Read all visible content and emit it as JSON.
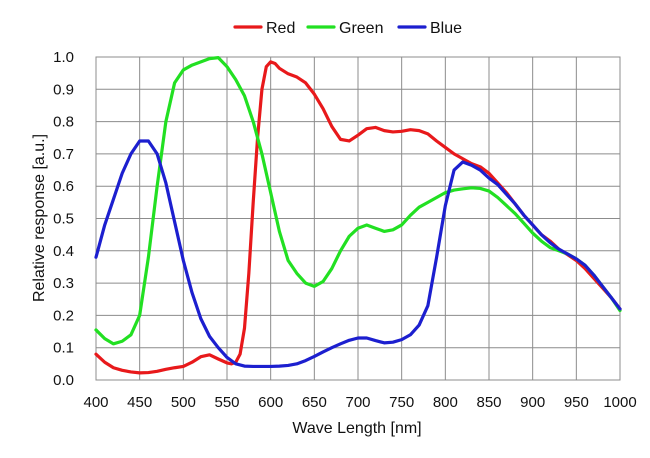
{
  "chart_data": {
    "type": "line",
    "title": "",
    "xlabel": "Wave Length [nm]",
    "ylabel": "Relative response [a.u.]",
    "xlim": [
      400,
      1000
    ],
    "ylim": [
      0.0,
      1.0
    ],
    "x_ticks": [
      "400",
      "450",
      "500",
      "550",
      "600",
      "650",
      "700",
      "750",
      "800",
      "850",
      "900",
      "950",
      "1000"
    ],
    "y_ticks": [
      "0.0",
      "0.1",
      "0.2",
      "0.3",
      "0.4",
      "0.5",
      "0.6",
      "0.7",
      "0.8",
      "0.9",
      "1.0"
    ],
    "grid": true,
    "legend_position": "top-center",
    "series": [
      {
        "name": "Red",
        "color": "#e8191b",
        "x": [
          400,
          410,
          420,
          430,
          440,
          450,
          460,
          470,
          480,
          490,
          500,
          510,
          520,
          530,
          540,
          550,
          555,
          560,
          565,
          570,
          575,
          580,
          585,
          590,
          595,
          600,
          605,
          610,
          620,
          630,
          640,
          650,
          660,
          670,
          680,
          690,
          700,
          710,
          720,
          730,
          740,
          750,
          760,
          770,
          780,
          790,
          800,
          810,
          820,
          830,
          840,
          850,
          860,
          870,
          880,
          890,
          900,
          910,
          920,
          930,
          940,
          950,
          960,
          970,
          980,
          990,
          1000
        ],
        "y": [
          0.08,
          0.055,
          0.038,
          0.03,
          0.025,
          0.022,
          0.023,
          0.027,
          0.033,
          0.038,
          0.042,
          0.055,
          0.072,
          0.078,
          0.065,
          0.053,
          0.05,
          0.055,
          0.08,
          0.16,
          0.33,
          0.55,
          0.75,
          0.9,
          0.97,
          0.985,
          0.98,
          0.965,
          0.948,
          0.938,
          0.92,
          0.885,
          0.84,
          0.785,
          0.745,
          0.74,
          0.758,
          0.778,
          0.782,
          0.772,
          0.768,
          0.77,
          0.775,
          0.772,
          0.762,
          0.74,
          0.72,
          0.7,
          0.685,
          0.67,
          0.66,
          0.64,
          0.61,
          0.58,
          0.545,
          0.51,
          0.48,
          0.45,
          0.43,
          0.405,
          0.388,
          0.37,
          0.345,
          0.315,
          0.285,
          0.255,
          0.22
        ]
      },
      {
        "name": "Green",
        "color": "#22e022",
        "x": [
          400,
          410,
          420,
          430,
          440,
          450,
          460,
          470,
          480,
          490,
          500,
          510,
          520,
          530,
          540,
          550,
          560,
          570,
          580,
          590,
          600,
          610,
          620,
          630,
          640,
          650,
          660,
          670,
          680,
          690,
          700,
          710,
          720,
          730,
          740,
          750,
          760,
          770,
          780,
          790,
          800,
          810,
          820,
          830,
          840,
          850,
          860,
          870,
          880,
          890,
          900,
          910,
          920,
          930,
          940,
          950,
          960,
          970,
          980,
          990,
          1000
        ],
        "y": [
          0.155,
          0.128,
          0.112,
          0.12,
          0.14,
          0.2,
          0.38,
          0.6,
          0.8,
          0.92,
          0.96,
          0.975,
          0.985,
          0.995,
          0.998,
          0.97,
          0.93,
          0.88,
          0.8,
          0.7,
          0.58,
          0.46,
          0.37,
          0.33,
          0.3,
          0.29,
          0.305,
          0.345,
          0.4,
          0.445,
          0.47,
          0.48,
          0.47,
          0.46,
          0.465,
          0.48,
          0.51,
          0.535,
          0.55,
          0.565,
          0.58,
          0.588,
          0.592,
          0.595,
          0.593,
          0.585,
          0.565,
          0.54,
          0.515,
          0.485,
          0.455,
          0.43,
          0.41,
          0.4,
          0.39,
          0.375,
          0.355,
          0.325,
          0.29,
          0.255,
          0.215
        ]
      },
      {
        "name": "Blue",
        "color": "#1c1fcf",
        "x": [
          400,
          410,
          420,
          430,
          440,
          450,
          460,
          470,
          480,
          490,
          500,
          510,
          520,
          530,
          540,
          550,
          560,
          570,
          580,
          590,
          600,
          610,
          620,
          630,
          640,
          650,
          660,
          670,
          680,
          690,
          700,
          710,
          720,
          730,
          740,
          750,
          760,
          770,
          780,
          790,
          800,
          810,
          820,
          830,
          840,
          850,
          860,
          870,
          880,
          890,
          900,
          910,
          920,
          930,
          940,
          950,
          960,
          970,
          980,
          990,
          1000
        ],
        "y": [
          0.38,
          0.48,
          0.56,
          0.64,
          0.7,
          0.74,
          0.74,
          0.7,
          0.61,
          0.49,
          0.37,
          0.27,
          0.19,
          0.135,
          0.1,
          0.07,
          0.05,
          0.043,
          0.042,
          0.042,
          0.042,
          0.043,
          0.045,
          0.05,
          0.06,
          0.073,
          0.087,
          0.1,
          0.112,
          0.123,
          0.13,
          0.13,
          0.122,
          0.115,
          0.117,
          0.125,
          0.14,
          0.17,
          0.23,
          0.38,
          0.54,
          0.65,
          0.675,
          0.665,
          0.65,
          0.625,
          0.605,
          0.575,
          0.545,
          0.51,
          0.48,
          0.45,
          0.425,
          0.405,
          0.39,
          0.375,
          0.355,
          0.325,
          0.29,
          0.255,
          0.22
        ]
      }
    ]
  }
}
